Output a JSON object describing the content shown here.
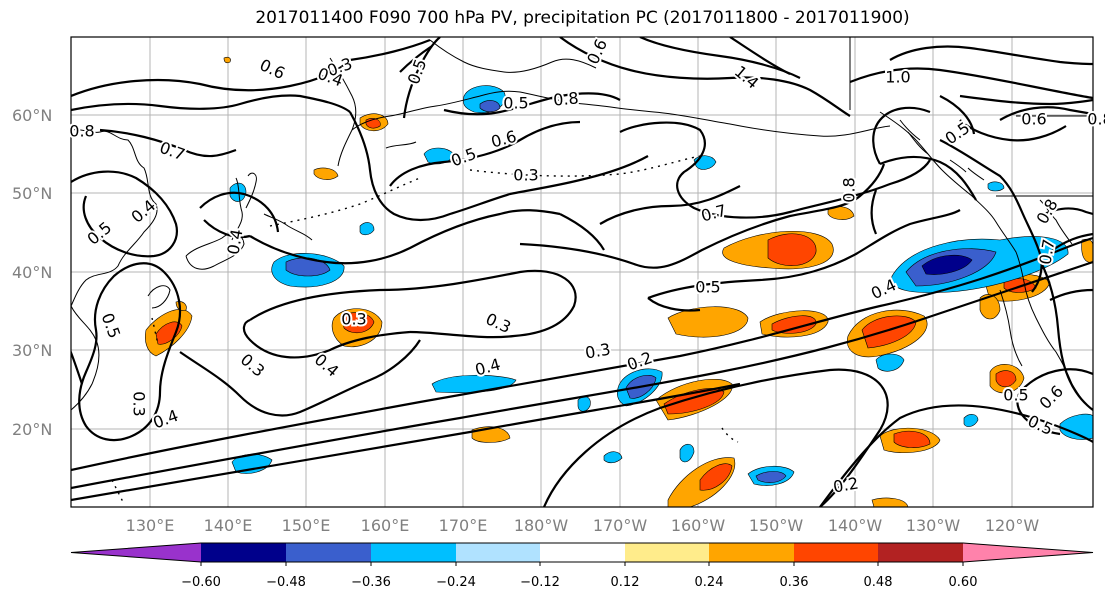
{
  "title": "2017011400 F090 700 hPa PV, precipitation PC (2017011800 - 2017011900)",
  "lat_labels": [
    "60°N",
    "50°N",
    "40°N",
    "30°N",
    "20°N"
  ],
  "lon_labels": [
    "130°E",
    "140°E",
    "150°E",
    "160°E",
    "170°E",
    "180°W",
    "170°W",
    "160°W",
    "150°W",
    "140°W",
    "130°W",
    "120°W"
  ],
  "colorbar": {
    "ticks": [
      "−0.60",
      "−0.48",
      "−0.36",
      "−0.24",
      "−0.12",
      "0.12",
      "0.24",
      "0.36",
      "0.48",
      "0.60"
    ],
    "colors": [
      "#9932CC",
      "#00008B",
      "#3A5FCD",
      "#00BFFF",
      "#B0E2FF",
      "#FFFFFF",
      "#FFEC8B",
      "#FFA500",
      "#FF4500",
      "#B22222",
      "#FF82AB"
    ]
  },
  "contour_labels": [
    "0.3",
    "0.6",
    "0.4",
    "0.5",
    "0.6",
    "0.5",
    "0.8",
    "1.4",
    "1.0",
    "0.5",
    "0.6",
    "0.8",
    "0.7",
    "0.4",
    "0.5",
    "0.8",
    "0.6",
    "0.7",
    "0.5",
    "0.3",
    "0.4",
    "0.8",
    "0.7",
    "0.8",
    "0.5",
    "0.3",
    "0.3",
    "0.4",
    "0.3",
    "0.4",
    "0.2",
    "0.5",
    "0.4",
    "0.5",
    "0.3",
    "0.3",
    "0.4",
    "0.6",
    "0.5",
    "0.2"
  ]
}
